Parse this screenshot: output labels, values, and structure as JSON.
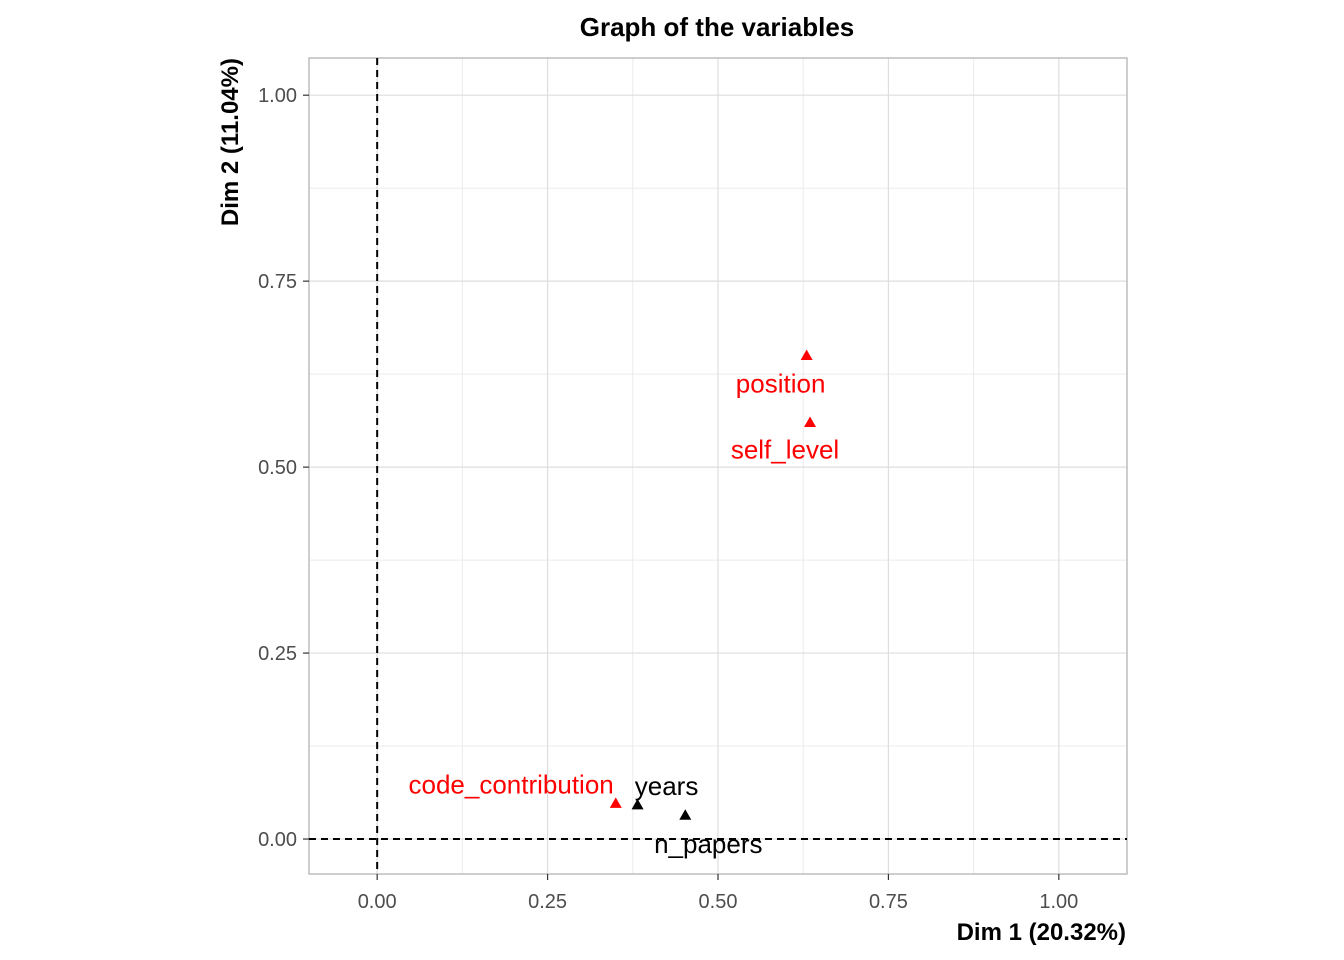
{
  "chart_data": {
    "type": "scatter",
    "title": "Graph of the variables",
    "xlabel": "Dim 1 (20.32%)",
    "ylabel": "Dim 2 (11.04%)",
    "xlim": [
      -0.1,
      1.1
    ],
    "ylim": [
      -0.047,
      1.05
    ],
    "xticks": [
      0.0,
      0.25,
      0.5,
      0.75,
      1.0
    ],
    "yticks": [
      0.0,
      0.25,
      0.5,
      0.75,
      1.0
    ],
    "xtick_labels": [
      "0.00",
      "0.25",
      "0.50",
      "0.75",
      "1.00"
    ],
    "ytick_labels": [
      "0.00",
      "0.25",
      "0.50",
      "0.75",
      "1.00"
    ],
    "grid": true,
    "reference_lines": {
      "x": 0,
      "y": 0,
      "style": "dashed"
    },
    "points": [
      {
        "label": "position",
        "x": 0.63,
        "y": 0.65,
        "color": "#ff0000"
      },
      {
        "label": "self_level",
        "x": 0.635,
        "y": 0.56,
        "color": "#ff0000"
      },
      {
        "label": "code_contribution",
        "x": 0.35,
        "y": 0.048,
        "color": "#ff0000"
      },
      {
        "label": "years",
        "x": 0.382,
        "y": 0.046,
        "color": "#000000"
      },
      {
        "label": "n_papers",
        "x": 0.452,
        "y": 0.032,
        "color": "#000000"
      }
    ]
  }
}
